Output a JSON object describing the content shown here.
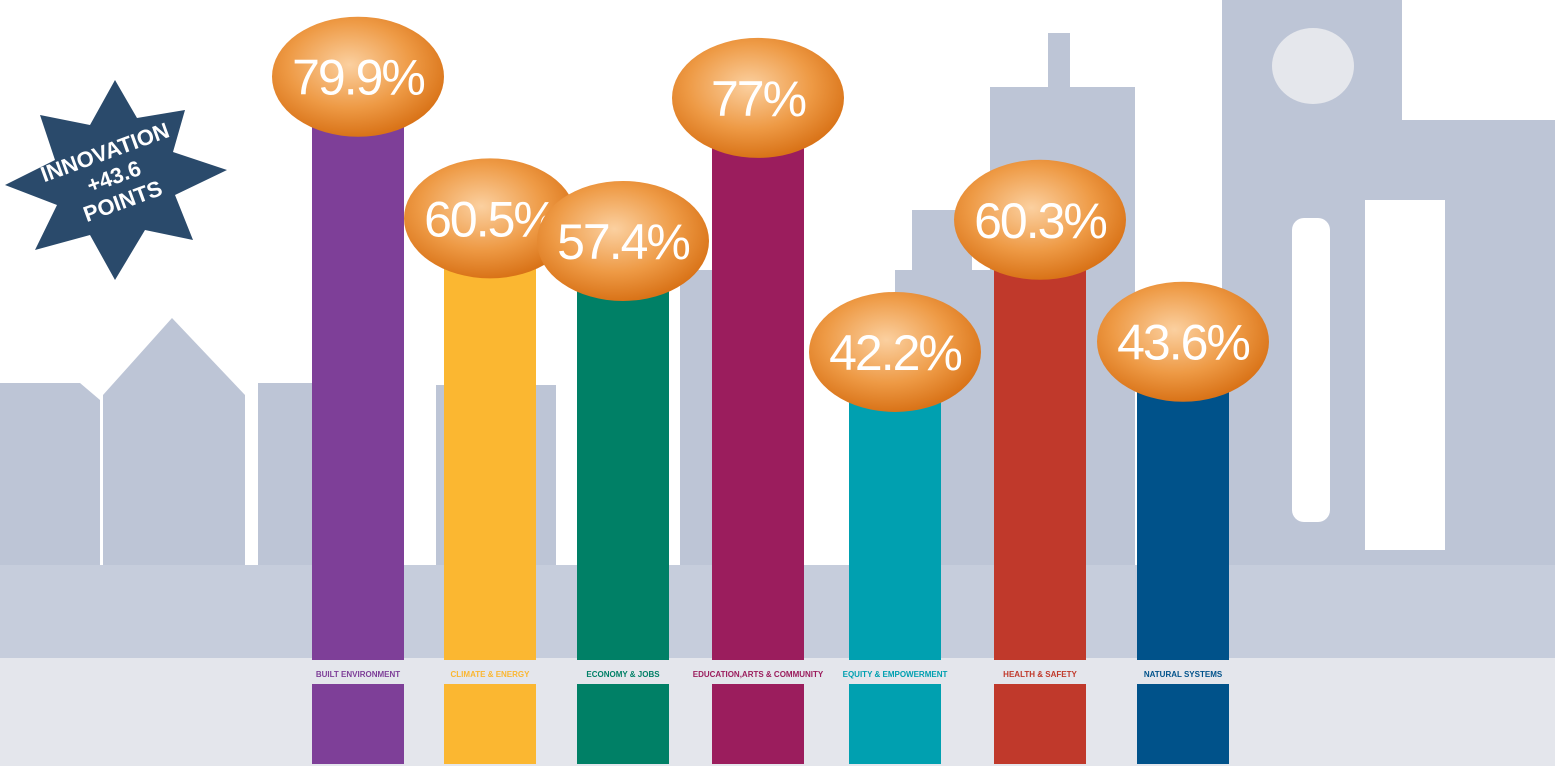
{
  "chart_data": {
    "type": "bar",
    "categories": [
      "BUILT ENVIRONMENT",
      "CLIMATE & ENERGY",
      "ECONOMY & JOBS",
      "EDUCATION,ARTS & COMMUNITY",
      "EQUITY & EMPOWERMENT",
      "HEALTH & SAFETY",
      "NATURAL SYSTEMS"
    ],
    "values": [
      79.9,
      60.5,
      57.4,
      77,
      42.2,
      60.3,
      43.6
    ],
    "value_labels": [
      "79.9%",
      "60.5%",
      "57.4%",
      "77%",
      "42.2%",
      "60.3%",
      "43.6%"
    ],
    "colors": [
      "#7e3f98",
      "#fbb731",
      "#008066",
      "#9b1d5d",
      "#00a0b0",
      "#c0392b",
      "#00528a"
    ],
    "annotation": [
      "INNOVATION",
      "+43.6",
      "POINTS"
    ]
  }
}
